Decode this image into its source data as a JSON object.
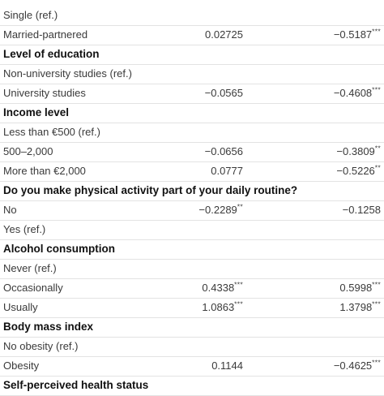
{
  "rows": [
    {
      "kind": "data",
      "label": "Single (ref.)",
      "c1": "",
      "c1s": "",
      "c2": "",
      "c2s": ""
    },
    {
      "kind": "data",
      "label": "Married-partnered",
      "c1": "0.02725",
      "c1s": "",
      "c2": "−0.5187",
      "c2s": "***"
    },
    {
      "kind": "header",
      "label": "Level of education"
    },
    {
      "kind": "data",
      "label": "Non-university studies (ref.)",
      "c1": "",
      "c1s": "",
      "c2": "",
      "c2s": ""
    },
    {
      "kind": "data",
      "label": "University studies",
      "c1": "−0.0565",
      "c1s": "",
      "c2": "−0.4608",
      "c2s": "***"
    },
    {
      "kind": "header",
      "label": "Income level"
    },
    {
      "kind": "data",
      "label": "Less than €500 (ref.)",
      "c1": "",
      "c1s": "",
      "c2": "",
      "c2s": ""
    },
    {
      "kind": "data",
      "label": "500–2,000",
      "c1": "−0.0656",
      "c1s": "",
      "c2": "−0.3809",
      "c2s": "**"
    },
    {
      "kind": "data",
      "label": "More than €2,000",
      "c1": "0.0777",
      "c1s": "",
      "c2": "−0.5226",
      "c2s": "**"
    },
    {
      "kind": "header",
      "label": "Do you make physical activity part of your daily routine?"
    },
    {
      "kind": "data",
      "label": "No",
      "c1": "−0.2289",
      "c1s": "**",
      "c2": "−0.1258",
      "c2s": ""
    },
    {
      "kind": "data",
      "label": "Yes (ref.)",
      "c1": "",
      "c1s": "",
      "c2": "",
      "c2s": ""
    },
    {
      "kind": "header",
      "label": "Alcohol consumption"
    },
    {
      "kind": "data",
      "label": "Never (ref.)",
      "c1": "",
      "c1s": "",
      "c2": "",
      "c2s": ""
    },
    {
      "kind": "data",
      "label": "Occasionally",
      "c1": "0.4338",
      "c1s": "***",
      "c2": "0.5998",
      "c2s": "***"
    },
    {
      "kind": "data",
      "label": "Usually",
      "c1": "1.0863",
      "c1s": "***",
      "c2": "1.3798",
      "c2s": "***"
    },
    {
      "kind": "header",
      "label": "Body mass index"
    },
    {
      "kind": "data",
      "label": "No obesity (ref.)",
      "c1": "",
      "c1s": "",
      "c2": "",
      "c2s": ""
    },
    {
      "kind": "data",
      "label": "Obesity",
      "c1": "0.1144",
      "c1s": "",
      "c2": "−0.4625",
      "c2s": "***"
    },
    {
      "kind": "header",
      "label": "Self-perceived health status"
    }
  ]
}
